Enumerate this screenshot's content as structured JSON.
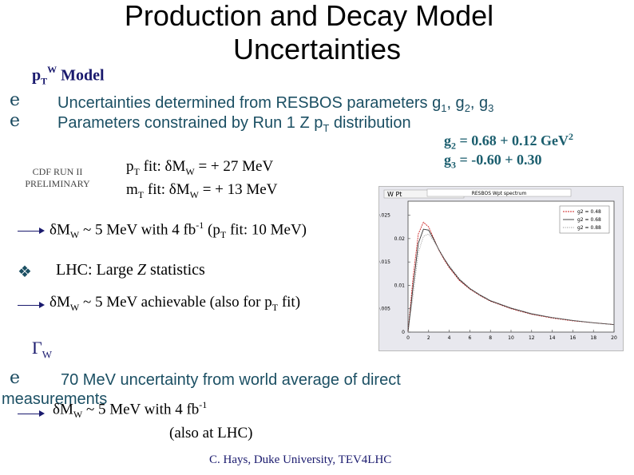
{
  "slide": {
    "title_line1": "Production and Decay Model",
    "title_line2": "Uncertainties",
    "pt_model_heading": "Model",
    "bullet1": "Uncertainties determined from RESBOS parameters g",
    "bullet2": "Parameters constrained by Run 1 Z p",
    "bullet2_tail": " distribution",
    "g2_text": "= 0.68 + 0.12 GeV",
    "g3_text": "= -0.60 + 0.30",
    "cdf_label_line1": "CDF RUN II",
    "cdf_label_line2": "PRELIMINARY",
    "pt_fit": "fit:  δM",
    "pt_fit_value": " = + 27 MeV",
    "mt_fit": "fit:  δM",
    "mt_fit_value": " = + 13 MeV",
    "arrow1_text": "~ 5 MeV with 4 fb",
    "arrow1_tail": " (p",
    "arrow1_end": " fit: 10 MeV)",
    "lhc_text": "LHC:  Large ",
    "lhc_z": "Z",
    "lhc_tail": " statistics",
    "arrow2_text": "~ 5 MeV achievable (also for p",
    "arrow2_end": " fit)",
    "gamma_label": "Γ",
    "gamma_sub": "W",
    "bullet3_line1": "70 MeV uncertainty from world average of direct",
    "bullet3_line2": "measurements",
    "arrow3_text": "~ 5 MeV with 4 fb",
    "arrow3_sub": "(also at LHC)",
    "footer": "C. Hays, Duke University, TEV4LHC"
  },
  "plot": {
    "window_title": "W Pt",
    "panel_title": "RESBOS Wpt spectrum",
    "legend": [
      "g2 = 0.48",
      "g2 = 0.68",
      "g2 = 0.88"
    ]
  },
  "chart_data": {
    "type": "line",
    "title": "RESBOS Wpt spectrum",
    "x_ticks": [
      "0",
      "2",
      "4",
      "6",
      "8",
      "10",
      "12",
      "14",
      "16",
      "18",
      "20"
    ],
    "y_ticks": [
      "0",
      "0.005",
      "0.01",
      "0.015",
      "0.02",
      "0.025"
    ],
    "xlim": [
      0,
      20
    ],
    "ylim": [
      0,
      0.028
    ],
    "series": [
      {
        "name": "g2 = 0.48",
        "color": "#cc2222",
        "x": [
          0,
          0.5,
          1,
          1.5,
          2,
          2.5,
          3,
          3.5,
          4,
          5,
          6,
          7,
          8,
          10,
          12,
          14,
          16,
          18,
          20
        ],
        "y": [
          0.0,
          0.012,
          0.021,
          0.0235,
          0.0225,
          0.02,
          0.0175,
          0.0155,
          0.0138,
          0.011,
          0.0092,
          0.0078,
          0.0066,
          0.005,
          0.0038,
          0.003,
          0.0024,
          0.002,
          0.0016
        ]
      },
      {
        "name": "g2 = 0.68",
        "color": "#333333",
        "x": [
          0,
          0.5,
          1,
          1.5,
          2,
          2.5,
          3,
          3.5,
          4,
          5,
          6,
          7,
          8,
          10,
          12,
          14,
          16,
          18,
          20
        ],
        "y": [
          0.0,
          0.01,
          0.019,
          0.022,
          0.0218,
          0.0198,
          0.0176,
          0.0157,
          0.014,
          0.0112,
          0.0093,
          0.0079,
          0.0067,
          0.0051,
          0.0039,
          0.0031,
          0.0025,
          0.002,
          0.0016
        ]
      },
      {
        "name": "g2 = 0.88",
        "color": "#888888",
        "x": [
          0,
          0.5,
          1,
          1.5,
          2,
          2.5,
          3,
          3.5,
          4,
          5,
          6,
          7,
          8,
          10,
          12,
          14,
          16,
          18,
          20
        ],
        "y": [
          0.0,
          0.008,
          0.017,
          0.0205,
          0.021,
          0.0195,
          0.0176,
          0.0158,
          0.0142,
          0.0114,
          0.0094,
          0.008,
          0.0068,
          0.0052,
          0.004,
          0.0031,
          0.0025,
          0.002,
          0.0016
        ]
      }
    ]
  }
}
